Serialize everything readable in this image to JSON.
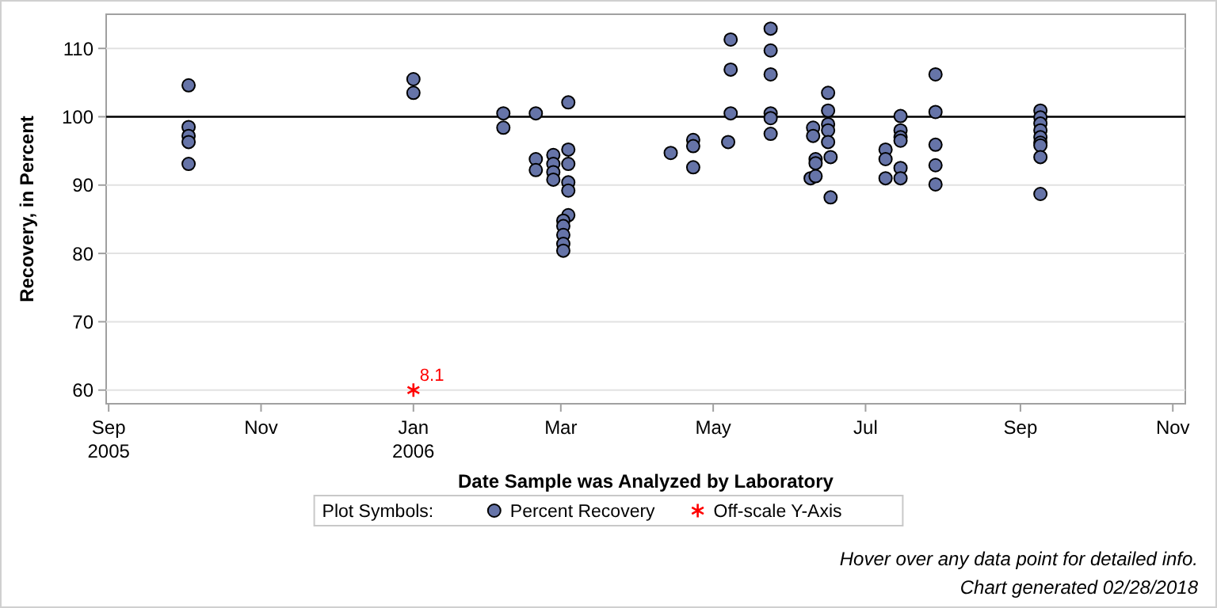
{
  "chart_data": {
    "type": "scatter",
    "xlabel": "Date Sample was Analyzed by Laboratory",
    "ylabel": "Recovery, in Percent",
    "legend_title": "Plot Symbols:",
    "xlim": [
      "2005-08-31",
      "2006-11-06"
    ],
    "xticks": [
      {
        "value": "2005-09-01",
        "label": "Sep\n2005"
      },
      {
        "value": "2005-11-01",
        "label": "Nov"
      },
      {
        "value": "2006-01-01",
        "label": "Jan\n2006"
      },
      {
        "value": "2006-03-01",
        "label": "Mar"
      },
      {
        "value": "2006-05-01",
        "label": "May"
      },
      {
        "value": "2006-07-01",
        "label": "Jul"
      },
      {
        "value": "2006-09-01",
        "label": "Sep"
      },
      {
        "value": "2006-11-01",
        "label": "Nov"
      }
    ],
    "ylim": [
      58,
      115
    ],
    "yticks": [
      60,
      70,
      80,
      90,
      100,
      110
    ],
    "grid": "y",
    "legend": "bottom",
    "ref_lines": [
      {
        "axis": "y",
        "value": 100,
        "color": "#000000"
      }
    ],
    "series": [
      {
        "name": "Percent Recovery",
        "color": "#6674a8",
        "marker": "circle",
        "x": [
          "2005-10-03",
          "2005-10-03",
          "2005-10-03",
          "2005-10-03",
          "2005-10-03",
          "2006-01-01",
          "2006-01-01",
          "2006-02-06",
          "2006-02-06",
          "2006-02-19",
          "2006-02-19",
          "2006-02-19",
          "2006-02-26",
          "2006-02-26",
          "2006-02-26",
          "2006-02-26",
          "2006-03-04",
          "2006-03-04",
          "2006-03-04",
          "2006-03-04",
          "2006-03-04",
          "2006-03-04",
          "2006-03-02",
          "2006-03-02",
          "2006-03-02",
          "2006-03-02",
          "2006-03-02",
          "2006-04-14",
          "2006-04-23",
          "2006-04-23",
          "2006-04-23",
          "2006-05-07",
          "2006-05-08",
          "2006-05-08",
          "2006-05-08",
          "2006-05-24",
          "2006-05-24",
          "2006-05-24",
          "2006-05-24",
          "2006-05-24",
          "2006-05-24",
          "2006-06-09",
          "2006-06-10",
          "2006-06-10",
          "2006-06-11",
          "2006-06-11",
          "2006-06-11",
          "2006-06-16",
          "2006-06-16",
          "2006-06-16",
          "2006-06-16",
          "2006-06-16",
          "2006-06-17",
          "2006-06-17",
          "2006-07-09",
          "2006-07-09",
          "2006-07-09",
          "2006-07-15",
          "2006-07-15",
          "2006-07-15",
          "2006-07-15",
          "2006-07-15",
          "2006-07-15",
          "2006-07-29",
          "2006-07-29",
          "2006-07-29",
          "2006-07-29",
          "2006-07-29",
          "2006-09-09",
          "2006-09-09",
          "2006-09-09",
          "2006-09-09",
          "2006-09-09",
          "2006-09-09",
          "2006-09-09",
          "2006-09-09",
          "2006-09-09"
        ],
        "values": [
          104.6,
          98.5,
          97.2,
          96.3,
          93.1,
          105.5,
          103.5,
          100.5,
          98.4,
          100.5,
          93.8,
          92.2,
          94.4,
          93.1,
          91.9,
          90.8,
          102.1,
          95.2,
          93.1,
          90.4,
          89.2,
          85.6,
          84.8,
          84.0,
          82.7,
          81.4,
          80.4,
          94.7,
          96.6,
          95.7,
          92.6,
          96.3,
          111.3,
          106.9,
          100.5,
          112.9,
          109.7,
          106.2,
          100.5,
          99.8,
          97.5,
          91.0,
          98.4,
          97.2,
          93.8,
          93.2,
          91.3,
          103.5,
          100.9,
          98.9,
          98.0,
          96.3,
          94.1,
          88.2,
          95.2,
          93.8,
          91.0,
          100.1,
          98.0,
          97.0,
          96.5,
          92.5,
          91.0,
          106.2,
          100.7,
          95.9,
          92.9,
          90.1,
          100.9,
          99.9,
          99.0,
          98.0,
          97.0,
          96.2,
          95.8,
          94.1,
          88.7
        ]
      },
      {
        "name": "Off-scale Y-Axis",
        "color": "#ff0000",
        "marker": "cross",
        "x": [
          "2006-01-01"
        ],
        "values": [
          60
        ]
      }
    ],
    "annotations": [
      {
        "text": "8.1",
        "x": "2006-01-01",
        "y": 60
      },
      "Hover over any data point for detailed info.",
      "Chart generated 02/28/2018"
    ]
  }
}
